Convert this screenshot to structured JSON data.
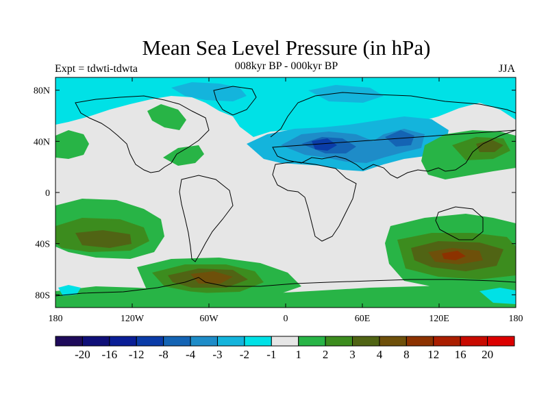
{
  "title": "Mean Sea Level Pressure (in hPa)",
  "subtitle": "008kyr BP - 000kyr BP",
  "left_label": "Expt = tdwti-tdwta",
  "right_label": "JJA",
  "lat_ticks": [
    {
      "value": 80,
      "label": "80N"
    },
    {
      "value": 40,
      "label": "40N"
    },
    {
      "value": 0,
      "label": "0"
    },
    {
      "value": -40,
      "label": "40S"
    },
    {
      "value": -80,
      "label": "80S"
    }
  ],
  "lon_ticks": [
    {
      "value": -180,
      "label": "180"
    },
    {
      "value": -120,
      "label": "120W"
    },
    {
      "value": -60,
      "label": "60W"
    },
    {
      "value": 0,
      "label": "0"
    },
    {
      "value": 60,
      "label": "60E"
    },
    {
      "value": 120,
      "label": "120E"
    },
    {
      "value": 180,
      "label": "180"
    }
  ],
  "colorbar": {
    "colors": [
      "#1e0a5a",
      "#0f0f78",
      "#0a1e96",
      "#0a3ca8",
      "#1464b4",
      "#1e8cc8",
      "#14b4dc",
      "#00e1e6",
      "#e6e6e6",
      "#28b446",
      "#3c8c1e",
      "#506414",
      "#6e500a",
      "#8c3200",
      "#aa1e00",
      "#c80a00",
      "#dc0000"
    ],
    "labels": [
      "-20",
      "-16",
      "-12",
      "-8",
      "-4",
      "-3",
      "-2",
      "-1",
      "1",
      "2",
      "3",
      "4",
      "8",
      "12",
      "16",
      "20"
    ]
  },
  "colors": {
    "neutral": "#e6e6e6",
    "cyan": "#00e1e6",
    "light_blue": "#14b4dc",
    "mid_blue": "#1e8cc8",
    "dark_blue": "#1464b4",
    "navy": "#0a3ca8",
    "green": "#28b446",
    "dark_green": "#3c8c1e",
    "olive": "#506414",
    "brown": "#6e500a",
    "rust": "#8c3200"
  }
}
